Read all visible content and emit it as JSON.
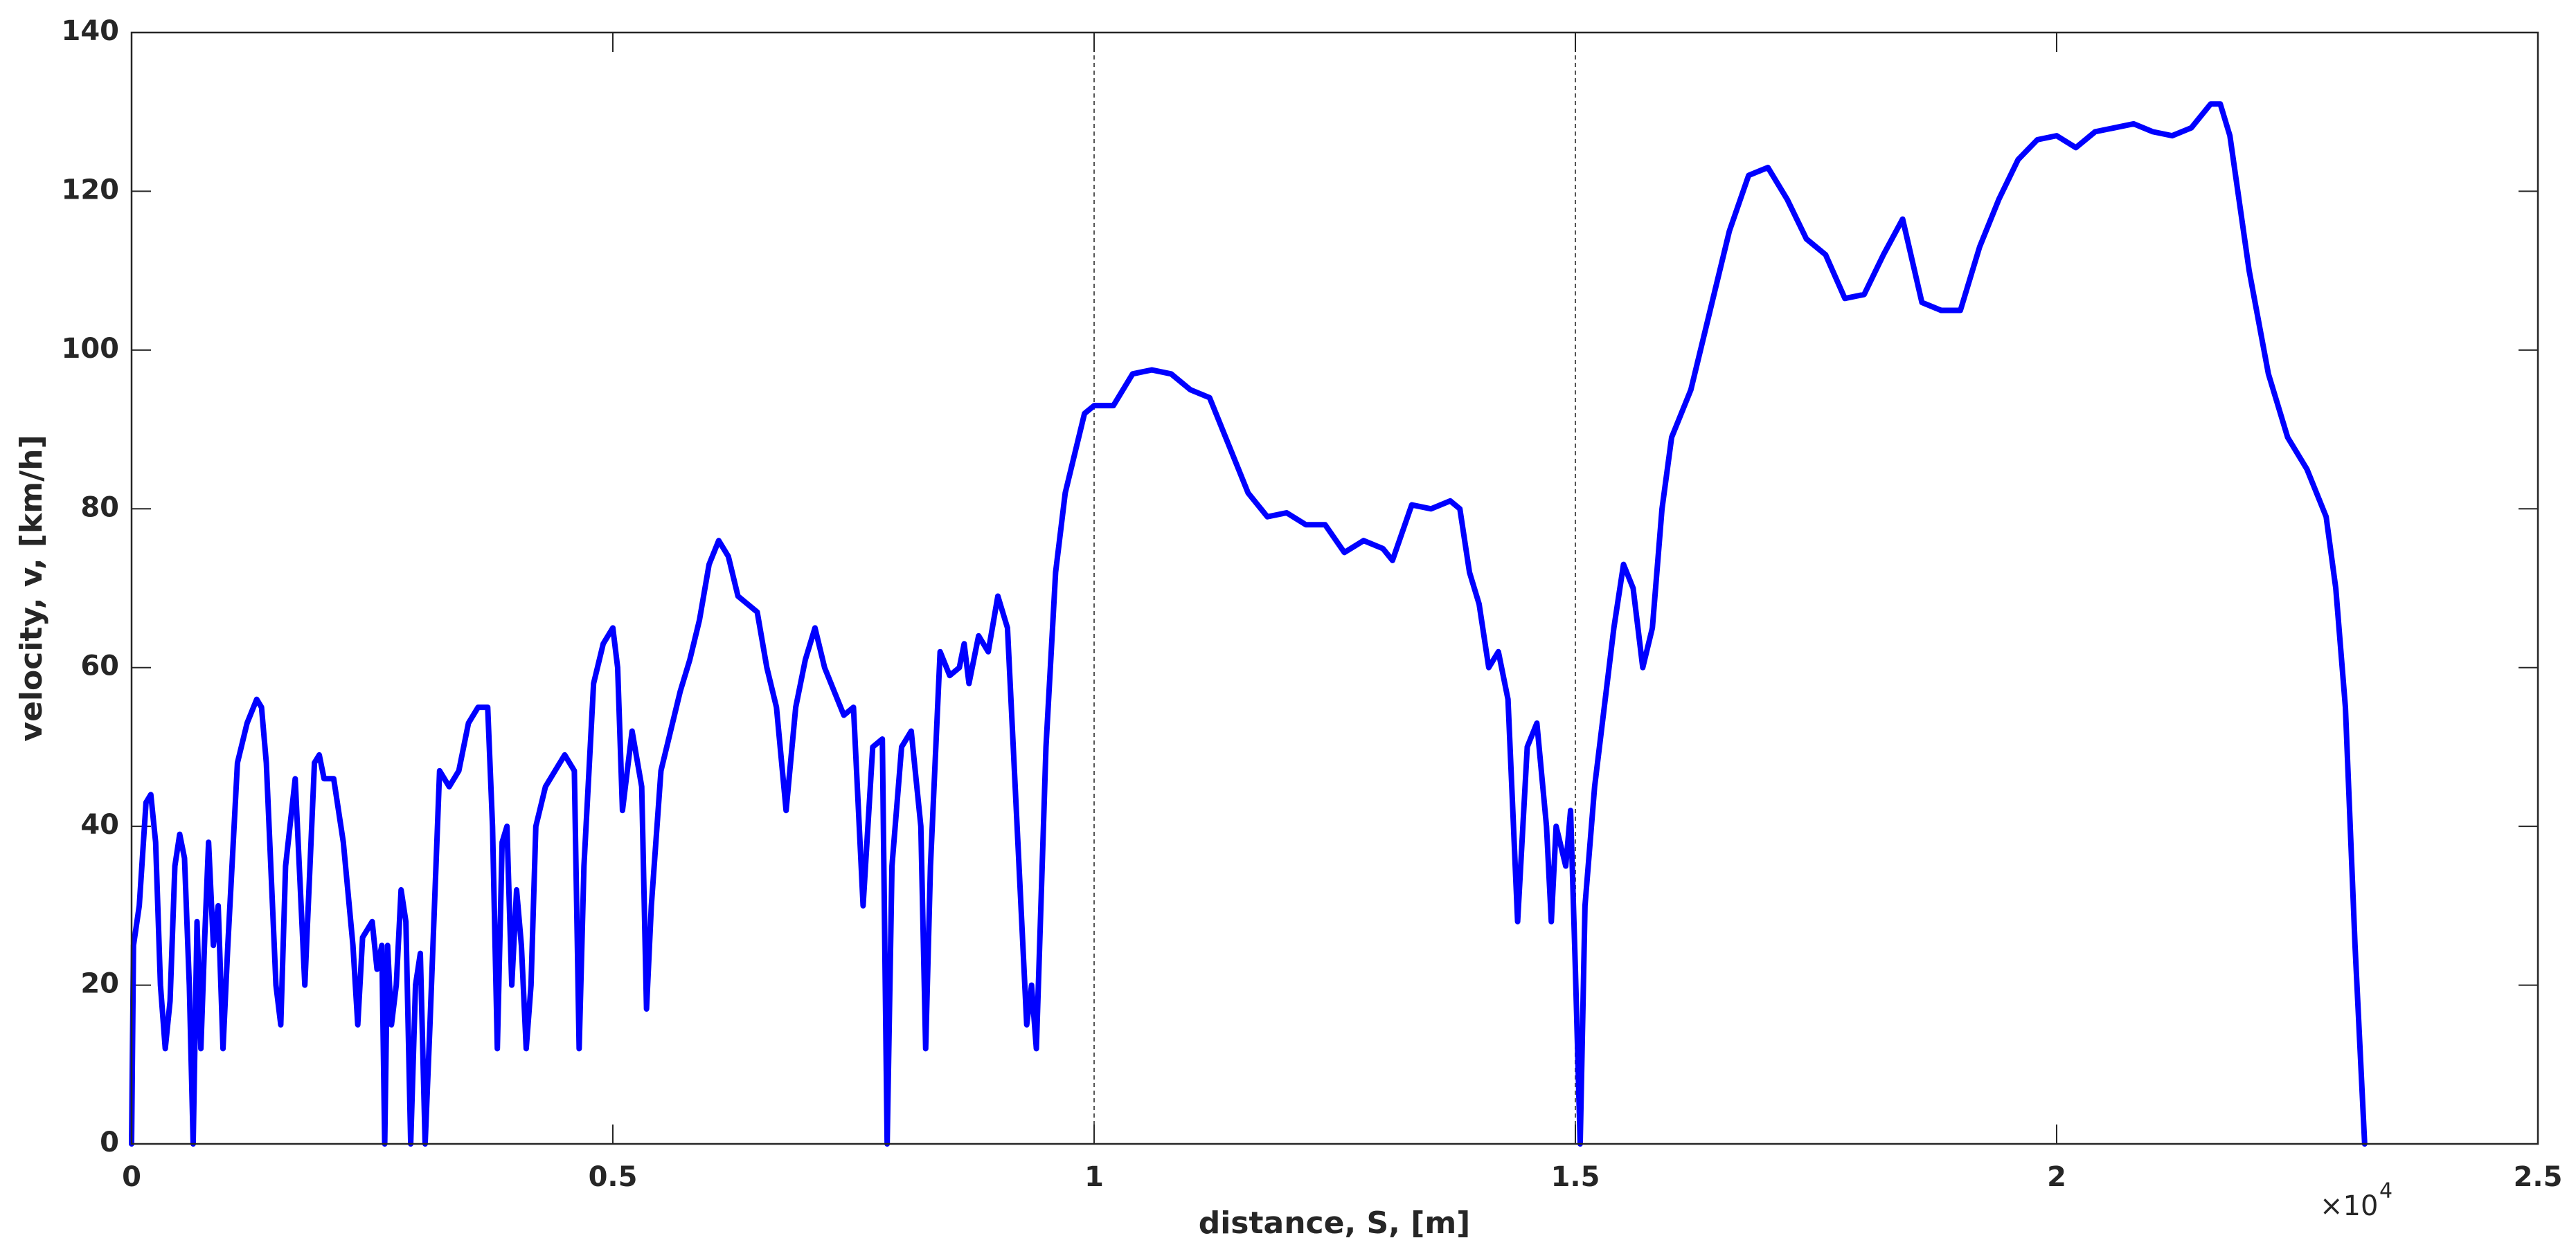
{
  "chart_data": {
    "type": "line",
    "x_label": "distance, S, [m]",
    "y_label": "velocity, v, [km/h]",
    "x_multiplier": {
      "base": "×10",
      "exponent": "4"
    },
    "color": "#0000ff",
    "xlim": [
      0,
      2.5
    ],
    "ylim": [
      0,
      140
    ],
    "xticks": [
      0,
      0.5,
      1,
      1.5,
      2,
      2.5
    ],
    "yticks": [
      0,
      20,
      40,
      60,
      80,
      100,
      120,
      140
    ],
    "reference_lines": [
      1,
      1.5
    ],
    "x": [
      0,
      0.002,
      0.008,
      0.015,
      0.02,
      0.025,
      0.03,
      0.035,
      0.04,
      0.045,
      0.05,
      0.055,
      0.06,
      0.064,
      0.068,
      0.072,
      0.076,
      0.08,
      0.085,
      0.09,
      0.095,
      0.1,
      0.11,
      0.12,
      0.13,
      0.135,
      0.14,
      0.15,
      0.155,
      0.16,
      0.17,
      0.18,
      0.19,
      0.195,
      0.2,
      0.21,
      0.22,
      0.23,
      0.235,
      0.24,
      0.25,
      0.255,
      0.26,
      0.263,
      0.266,
      0.27,
      0.275,
      0.28,
      0.285,
      0.29,
      0.295,
      0.3,
      0.305,
      0.31,
      0.32,
      0.33,
      0.34,
      0.35,
      0.36,
      0.37,
      0.375,
      0.38,
      0.385,
      0.39,
      0.395,
      0.4,
      0.405,
      0.41,
      0.415,
      0.42,
      0.43,
      0.44,
      0.45,
      0.46,
      0.465,
      0.47,
      0.48,
      0.49,
      0.5,
      0.505,
      0.51,
      0.52,
      0.53,
      0.535,
      0.54,
      0.55,
      0.56,
      0.57,
      0.58,
      0.59,
      0.6,
      0.61,
      0.62,
      0.63,
      0.64,
      0.65,
      0.66,
      0.67,
      0.68,
      0.69,
      0.7,
      0.71,
      0.72,
      0.73,
      0.74,
      0.75,
      0.76,
      0.77,
      0.78,
      0.785,
      0.79,
      0.8,
      0.81,
      0.82,
      0.825,
      0.83,
      0.84,
      0.85,
      0.86,
      0.865,
      0.87,
      0.88,
      0.89,
      0.9,
      0.91,
      0.92,
      0.93,
      0.935,
      0.94,
      0.95,
      0.96,
      0.97,
      0.98,
      0.99,
      1.0,
      1.02,
      1.04,
      1.06,
      1.08,
      1.1,
      1.12,
      1.14,
      1.16,
      1.18,
      1.2,
      1.22,
      1.24,
      1.26,
      1.28,
      1.3,
      1.31,
      1.33,
      1.35,
      1.37,
      1.38,
      1.39,
      1.4,
      1.41,
      1.42,
      1.43,
      1.44,
      1.45,
      1.46,
      1.47,
      1.475,
      1.48,
      1.49,
      1.495,
      1.5,
      1.505,
      1.51,
      1.52,
      1.53,
      1.54,
      1.55,
      1.56,
      1.57,
      1.58,
      1.59,
      1.6,
      1.62,
      1.64,
      1.66,
      1.68,
      1.7,
      1.72,
      1.74,
      1.76,
      1.78,
      1.8,
      1.82,
      1.84,
      1.86,
      1.88,
      1.9,
      1.92,
      1.94,
      1.96,
      1.98,
      2.0,
      2.02,
      2.04,
      2.06,
      2.08,
      2.1,
      2.12,
      2.14,
      2.16,
      2.17,
      2.18,
      2.2,
      2.22,
      2.24,
      2.26,
      2.28,
      2.29,
      2.3,
      2.31,
      2.32
    ],
    "values": [
      0,
      25,
      30,
      43,
      44,
      38,
      20,
      12,
      18,
      35,
      39,
      36,
      20,
      0,
      28,
      12,
      26,
      38,
      25,
      30,
      12,
      25,
      48,
      53,
      56,
      55,
      48,
      20,
      15,
      35,
      46,
      20,
      48,
      49,
      46,
      46,
      38,
      25,
      15,
      26,
      28,
      22,
      25,
      0,
      25,
      15,
      20,
      32,
      28,
      0,
      20,
      24,
      0,
      15,
      47,
      45,
      47,
      53,
      55,
      55,
      40,
      12,
      38,
      40,
      20,
      32,
      25,
      12,
      20,
      40,
      45,
      47,
      49,
      47,
      12,
      35,
      58,
      63,
      65,
      60,
      42,
      52,
      45,
      17,
      30,
      47,
      52,
      57,
      61,
      66,
      73,
      76,
      74,
      69,
      68,
      67,
      60,
      55,
      42,
      55,
      61,
      65,
      60,
      57,
      54,
      55,
      30,
      50,
      51,
      0,
      35,
      50,
      52,
      40,
      12,
      35,
      62,
      59,
      60,
      63,
      58,
      64,
      62,
      69,
      65,
      40,
      15,
      20,
      12,
      50,
      72,
      82,
      87,
      92,
      93,
      93,
      97,
      97.5,
      97,
      95,
      94,
      88,
      82,
      79,
      79.5,
      78,
      78,
      74.5,
      76,
      75,
      73.5,
      80.5,
      80,
      81,
      80,
      72,
      68,
      60,
      62,
      56,
      28,
      50,
      53,
      40,
      28,
      40,
      35,
      42,
      22,
      0,
      30,
      45,
      55,
      65,
      73,
      70,
      60,
      65,
      80,
      89,
      95,
      105,
      115,
      122,
      123,
      119,
      114,
      112,
      106.5,
      107,
      112,
      116.5,
      106,
      105,
      105,
      113,
      119,
      124,
      126.5,
      127,
      125.5,
      127.5,
      128,
      128.5,
      127.5,
      127,
      128,
      131,
      131,
      127,
      110,
      97,
      89,
      85,
      79,
      70,
      55,
      25,
      0
    ]
  }
}
